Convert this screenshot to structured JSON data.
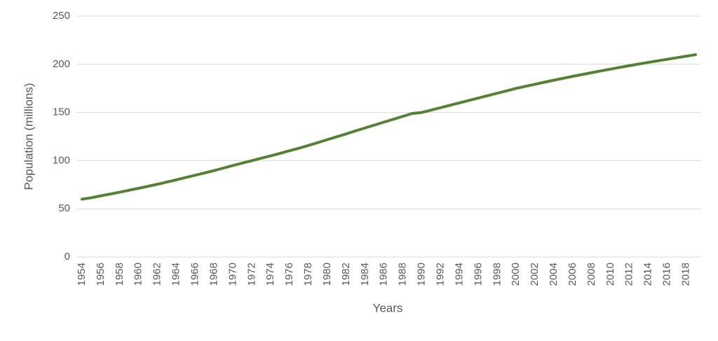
{
  "chart_data": {
    "type": "line",
    "x_label": "Years",
    "y_label": "Population (millions)",
    "categories": [
      "1954",
      null,
      "1956",
      null,
      "1958",
      null,
      "1960",
      null,
      "1962",
      null,
      "1964",
      null,
      "1966",
      null,
      "1968",
      null,
      "1970",
      null,
      "1972",
      null,
      "1974",
      null,
      "1976",
      null,
      "1978",
      null,
      "1980",
      null,
      "1982",
      null,
      "1984",
      null,
      "1986",
      null,
      "1988",
      null,
      "1990",
      null,
      "1992",
      null,
      "1994",
      null,
      "1996",
      null,
      "1998",
      null,
      "2000",
      null,
      "2002",
      null,
      "2004",
      null,
      "2006",
      null,
      "2008",
      null,
      "2010",
      null,
      "2012",
      null,
      "2014",
      null,
      "2016",
      null,
      "2018",
      null
    ],
    "values": [
      60,
      61.5,
      63.5,
      65.3,
      67.3,
      69.3,
      71.3,
      73.4,
      75.5,
      77.8,
      80.1,
      82.5,
      84.9,
      87.3,
      89.7,
      92.3,
      95,
      97.5,
      100,
      102.5,
      105,
      107.6,
      110.3,
      113,
      115.8,
      118.8,
      121.8,
      124.8,
      127.8,
      130.9,
      134,
      137,
      140,
      143,
      146,
      149,
      150,
      152.5,
      155,
      157.5,
      160,
      162.5,
      165,
      167.5,
      170,
      172.5,
      175,
      177.2,
      179.3,
      181.4,
      183.5,
      185.5,
      187.5,
      189.4,
      191.3,
      193.2,
      195,
      196.8,
      198.6,
      200.3,
      202,
      203.6,
      205.2,
      206.8,
      208.4,
      210
    ],
    "color": "#548235",
    "ylim": [
      0,
      250
    ],
    "yticks": [
      0,
      50,
      100,
      150,
      200,
      250
    ],
    "grid": true
  }
}
